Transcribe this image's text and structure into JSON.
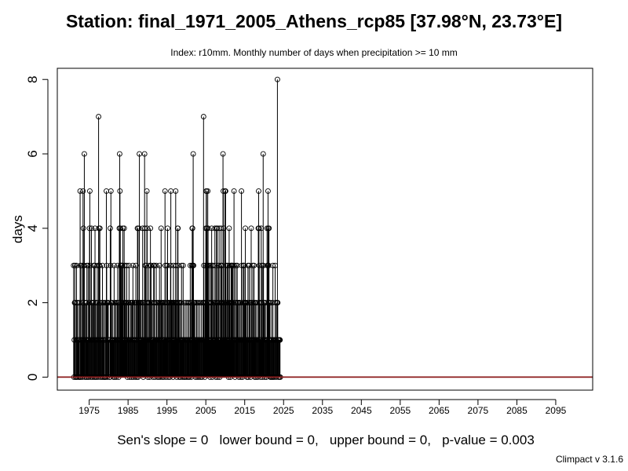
{
  "title": "Station: final_1971_2005_Athens_rcp85 [37.98°N, 23.73°E]",
  "subtitle": "Index: r10mm. Monthly number of days when precipitation >= 10 mm",
  "stats_text": "Sen's slope = 0   lower bound = 0,   upper bound = 0,   p-value = 0.003",
  "credit": "Climpact v 3.1.6",
  "colors": {
    "trend_line": "#8b1a1a",
    "series": "#000000"
  },
  "chart_data": {
    "type": "line",
    "xlabel": "",
    "ylabel": "days",
    "xlim": [
      1966.8,
      2104.5
    ],
    "ylim": [
      -0.35,
      8.3
    ],
    "xticks": [
      1975,
      1985,
      1995,
      2005,
      2015,
      2025,
      2035,
      2045,
      2055,
      2065,
      2075,
      2085,
      2095
    ],
    "xtick_labels": [
      "1975",
      "1985",
      "1995",
      "2005",
      "2015",
      "2025",
      "2035",
      "2045",
      "2055",
      "2065",
      "2075",
      "2085",
      "2095"
    ],
    "yticks": [
      0,
      2,
      4,
      6,
      8
    ],
    "ytick_labels": [
      "0",
      "2",
      "4",
      "6",
      "8"
    ],
    "x_start": 1971,
    "x_step": 0.0833333,
    "trend": {
      "slope": 0,
      "intercept": 0
    },
    "series": [
      {
        "values": [
          3,
          0,
          1,
          2,
          3,
          2,
          0,
          0,
          1,
          3,
          0,
          2,
          2,
          1,
          0,
          1,
          1,
          2,
          0,
          0,
          5,
          3,
          0,
          1,
          1,
          3,
          2,
          0,
          1,
          5,
          4,
          3,
          3,
          6,
          1,
          0,
          2,
          2,
          1,
          0,
          2,
          3,
          1,
          0,
          1,
          3,
          1,
          0,
          2,
          4,
          5,
          3,
          1,
          0,
          1,
          4,
          2,
          2,
          0,
          1,
          2,
          2,
          3,
          0,
          1,
          3,
          4,
          0,
          2,
          1,
          0,
          1,
          2,
          3,
          2,
          0,
          1,
          7,
          4,
          3,
          3,
          4,
          0,
          1,
          2,
          2,
          1,
          0,
          1,
          3,
          2,
          0,
          1,
          1,
          2,
          0,
          0,
          1,
          2,
          0,
          1,
          5,
          3,
          2,
          0,
          2,
          2,
          2,
          1,
          1,
          1,
          0,
          0,
          4,
          3,
          5,
          2,
          2,
          1,
          1,
          2,
          1,
          1,
          0,
          1,
          3,
          2,
          0,
          1,
          1,
          2,
          2,
          0,
          1,
          1,
          2,
          3,
          1,
          2,
          0,
          1,
          4,
          6,
          5,
          4,
          3,
          3,
          3,
          2,
          2,
          3,
          3,
          4,
          1,
          1,
          2,
          4,
          3,
          3,
          1,
          2,
          2,
          1,
          1,
          3,
          2,
          0,
          1,
          1,
          2,
          2,
          3,
          1,
          0,
          1,
          1,
          2,
          2,
          2,
          0,
          1,
          2,
          2,
          3,
          0,
          1,
          1,
          2,
          2,
          1,
          0,
          1,
          3,
          2,
          2,
          0,
          1,
          4,
          4,
          0,
          2,
          2,
          4,
          6,
          2,
          1,
          1,
          2,
          2,
          1,
          1,
          1,
          2,
          4,
          2,
          0,
          1,
          1,
          2,
          6,
          4,
          3,
          3,
          1,
          1,
          2,
          5,
          4,
          2,
          0,
          1,
          1,
          3,
          2,
          2,
          0,
          1,
          4,
          3,
          3,
          2,
          1,
          1,
          2,
          1,
          0,
          1,
          3,
          2,
          3,
          2,
          0,
          1,
          1,
          1,
          3,
          2,
          2,
          1,
          0,
          1,
          2,
          2,
          0,
          1,
          3,
          2,
          2,
          0,
          1,
          4,
          1,
          2,
          2,
          0,
          1,
          2,
          2,
          0,
          1,
          1,
          2,
          5,
          3,
          2,
          0,
          1,
          1,
          3,
          3,
          4,
          2,
          0,
          1,
          2,
          2,
          1,
          0,
          2,
          3,
          5,
          2,
          2,
          1,
          2,
          2,
          1,
          0,
          3,
          2,
          2,
          1,
          1,
          2,
          2,
          5,
          3,
          2,
          0,
          1,
          2,
          4,
          4,
          3,
          2,
          1,
          0,
          2,
          2,
          1,
          0,
          1,
          2,
          3,
          1,
          1,
          0,
          1,
          3,
          1,
          1,
          0,
          2,
          1,
          0,
          1,
          1,
          2,
          1,
          0,
          1,
          1,
          2,
          1,
          0,
          1,
          2,
          0,
          1,
          1,
          3,
          2,
          2,
          0,
          1,
          3,
          4,
          4,
          3,
          6,
          3,
          2,
          1,
          2,
          2,
          1,
          0,
          1,
          1,
          2,
          2,
          0,
          1,
          1,
          2,
          1,
          0,
          1,
          1,
          2,
          1,
          0,
          1,
          1,
          2,
          1,
          0,
          1,
          1,
          2,
          2,
          7,
          3,
          2,
          1,
          0,
          2,
          3,
          4,
          5,
          5,
          4,
          3,
          3,
          5,
          4,
          2,
          1,
          3,
          2,
          1,
          0,
          1,
          3,
          2,
          2,
          4,
          1,
          0,
          3,
          3,
          2,
          1,
          1,
          2,
          2,
          4,
          3,
          1,
          0,
          2,
          4,
          4,
          4,
          2,
          0,
          1,
          3,
          3,
          4,
          1,
          0,
          1,
          2,
          3,
          4,
          2,
          3,
          2,
          1,
          1,
          6,
          5,
          4,
          2,
          1,
          1,
          5,
          5,
          5,
          3,
          2,
          1,
          1,
          3,
          2,
          3,
          1,
          0,
          2,
          4,
          3,
          2,
          1,
          0,
          2,
          3,
          3,
          2,
          3,
          2,
          3,
          1,
          1,
          2,
          5,
          3,
          1,
          0,
          1,
          2,
          3,
          2,
          1,
          1,
          3,
          2,
          2,
          2,
          1,
          0,
          1,
          2,
          2,
          2,
          1,
          0,
          1,
          5,
          3,
          1,
          0,
          1,
          2,
          3,
          3,
          3,
          2,
          1,
          2,
          4,
          2,
          2,
          2,
          1,
          0,
          1,
          2,
          3,
          0,
          1,
          1,
          3,
          2,
          2,
          1,
          0,
          1,
          4,
          2,
          2,
          1,
          1,
          3,
          2,
          1,
          1,
          3,
          2,
          0,
          1,
          2,
          1,
          0,
          1,
          2,
          1,
          1,
          0,
          1,
          4,
          5,
          4,
          3,
          2,
          2,
          1,
          0,
          1,
          4,
          2,
          2,
          3,
          0,
          1,
          6,
          3,
          2,
          1,
          2,
          0,
          1,
          2,
          1,
          1,
          0,
          1,
          4,
          3,
          3,
          5,
          4,
          3,
          4,
          2,
          2,
          1,
          0,
          1,
          2,
          0,
          1,
          1,
          0,
          2,
          3,
          0,
          1,
          1,
          0,
          1,
          1,
          3,
          2,
          1,
          0,
          1,
          2,
          2,
          8,
          2,
          1,
          0,
          1,
          1,
          0,
          1,
          1,
          0
        ]
      }
    ]
  }
}
